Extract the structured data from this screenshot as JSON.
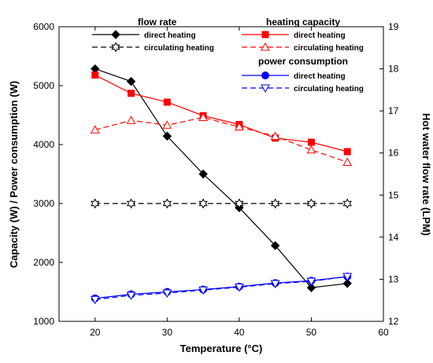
{
  "chart_data": {
    "type": "line",
    "xlabel": "Temperature (°C)",
    "ylabel_left": "Capacity (W) / Power consumption (W)",
    "ylabel_right": "Hot water flow rate (LPM)",
    "xlim": [
      15,
      60
    ],
    "ylim_left": [
      1000,
      6000
    ],
    "ylim_right": [
      12,
      19
    ],
    "x_ticks": [
      20,
      30,
      40,
      50,
      60
    ],
    "y_left_ticks": [
      1000,
      2000,
      3000,
      4000,
      5000,
      6000
    ],
    "y_right_ticks": [
      12,
      13,
      14,
      15,
      16,
      17,
      18,
      19
    ],
    "x": [
      20,
      25,
      30,
      35,
      40,
      45,
      50,
      55
    ],
    "grid": false,
    "legend_groups": [
      {
        "title": "flow rate",
        "entries": [
          "direct heating",
          "circulating heating"
        ]
      },
      {
        "title": "heating capacity",
        "entries": [
          "direct heating",
          "circulating heating"
        ]
      },
      {
        "title": "power consumption",
        "entries": [
          "direct heating",
          "circulating heating"
        ]
      }
    ],
    "series": [
      {
        "group": "flow rate",
        "name": "direct heating",
        "axis": "right",
        "color": "#000000",
        "dash": "solid",
        "marker": "diamond",
        "values": [
          18.0,
          17.7,
          16.4,
          15.5,
          14.7,
          13.8,
          12.8,
          12.9
        ]
      },
      {
        "group": "flow rate",
        "name": "circulating heating",
        "axis": "right",
        "color": "#000000",
        "dash": "dashed",
        "marker": "star-open",
        "values": [
          14.8,
          14.8,
          14.8,
          14.8,
          14.8,
          14.8,
          14.8,
          14.8
        ]
      },
      {
        "group": "heating capacity",
        "name": "direct heating",
        "axis": "left",
        "color": "#ff0000",
        "dash": "solid",
        "marker": "square",
        "values": [
          5180,
          4870,
          4720,
          4490,
          4340,
          4110,
          4040,
          3880
        ]
      },
      {
        "group": "heating capacity",
        "name": "circulating heating",
        "axis": "left",
        "color": "#ff0000",
        "dash": "dashed",
        "marker": "triangle-up-open",
        "values": [
          4250,
          4410,
          4330,
          4460,
          4300,
          4140,
          3910,
          3700
        ]
      },
      {
        "group": "power consumption",
        "name": "direct heating",
        "axis": "left",
        "color": "#0000ff",
        "dash": "solid",
        "marker": "circle",
        "values": [
          1390,
          1460,
          1500,
          1540,
          1590,
          1650,
          1690,
          1760
        ]
      },
      {
        "group": "power consumption",
        "name": "circulating heating",
        "axis": "left",
        "color": "#0000ff",
        "dash": "dashed",
        "marker": "triangle-down-open",
        "values": [
          1370,
          1440,
          1480,
          1530,
          1580,
          1640,
          1680,
          1760
        ]
      }
    ]
  }
}
